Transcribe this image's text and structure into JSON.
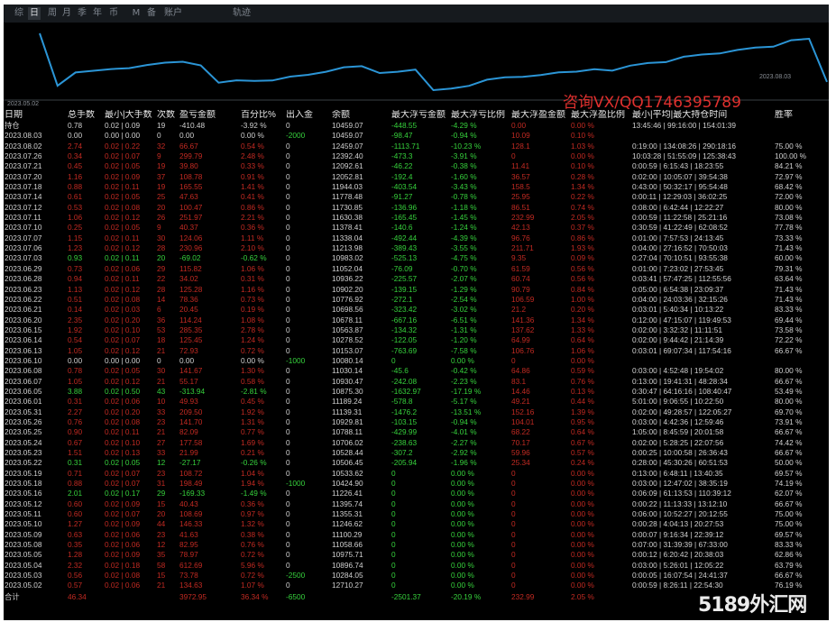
{
  "toolbar": {
    "tabs": [
      {
        "label": "综",
        "active": false
      },
      {
        "label": "日",
        "active": true
      },
      {
        "label": "周",
        "active": false
      },
      {
        "label": "月",
        "active": false
      },
      {
        "label": "季",
        "active": false
      },
      {
        "label": "年",
        "active": false
      },
      {
        "label": "币",
        "active": false
      },
      {
        "label": "M",
        "active": false
      },
      {
        "label": "备",
        "active": false
      },
      {
        "label": "账户",
        "active": false
      }
    ],
    "track_label": "轨迹"
  },
  "chart": {
    "start_label": "2023.05.02",
    "end_label": "2023.08.03",
    "watermark": "咨询VX/QQ1746395789",
    "line_color": "#2b95d6"
  },
  "chart_data": {
    "type": "line",
    "x_range": [
      "2023.05.02",
      "2023.08.03"
    ],
    "series": [
      {
        "values": [
          12710.27,
          10284.05,
          10896.74,
          10975.71,
          11058.66,
          11100.29,
          11246.62,
          11355.31,
          11395.74,
          11226.41,
          10424.9,
          10533.62,
          10506.45,
          10528.44,
          10706.02,
          10788.11,
          10929.81,
          11139.31,
          11189.24,
          10875.3,
          10930.47,
          11030.14,
          10080.14,
          10153.07,
          10278.52,
          10563.87,
          10678.11,
          10698.56,
          10776.92,
          10902.2,
          10936.22,
          11052.04,
          10983.02,
          11213.98,
          11338.04,
          11378.41,
          11630.38,
          11730.85,
          11778.48,
          11944.03,
          12052.81,
          12092.61,
          12392.4,
          12459.07,
          10459.07
        ]
      }
    ]
  },
  "table": {
    "headers": [
      "日期",
      "总手数",
      "最小|大手数",
      "次数",
      "盈亏金额",
      "百分比%",
      "出入金",
      "余额",
      "最大浮亏金额",
      "最大浮亏比例",
      "最大浮盈金额",
      "最大浮盈比例",
      "最小|平均|最大持仓时间",
      "胜率"
    ],
    "holding_row": {
      "cls": "white",
      "cells": [
        "持仓",
        "0.78",
        "0.02 | 0.09",
        "19",
        "-410.48",
        "-3.92 %",
        "0",
        "10459.07",
        "-448.55",
        "-4.29 %",
        "0.00",
        "0.00 %",
        "13:45:46 | 99:16:00 | 154:01:39",
        ""
      ]
    },
    "rows": [
      {
        "cls": "white",
        "cells": [
          "2023.08.03",
          "0.00",
          "0.00 | 0.00",
          "0",
          "0.00",
          "0.00 %",
          "-2000",
          "10459.07",
          "-98.47",
          "-0.94 %",
          "10.09",
          "0.10 %",
          "",
          ""
        ]
      },
      {
        "cls": "red",
        "cells": [
          "2023.08.02",
          "2.74",
          "0.02 | 0.22",
          "32",
          "66.67",
          "0.54 %",
          "0",
          "12459.07",
          "-1113.71",
          "-10.23 %",
          "128.1",
          "1.03 %",
          "0:19:00 | 134:08:26 | 290:18:16",
          "75.00 %"
        ]
      },
      {
        "cls": "red",
        "cells": [
          "2023.07.26",
          "0.34",
          "0.02 | 0.07",
          "9",
          "299.79",
          "2.48 %",
          "0",
          "12392.40",
          "-473.3",
          "-3.91 %",
          "0",
          "0.00 %",
          "10:03:28 | 51:55:09 | 125:38:43",
          "100.00 %"
        ]
      },
      {
        "cls": "red",
        "cells": [
          "2023.07.21",
          "0.45",
          "0.02 | 0.05",
          "19",
          "39.80",
          "0.33 %",
          "0",
          "12092.61",
          "-46.22",
          "-0.38 %",
          "11.41",
          "0.10 %",
          "0:00:59 | 6:15:43 | 18:23:55",
          "84.21 %"
        ]
      },
      {
        "cls": "red",
        "cells": [
          "2023.07.20",
          "1.16",
          "0.02 | 0.09",
          "37",
          "108.78",
          "0.91 %",
          "0",
          "12052.81",
          "-192.4",
          "-1.60 %",
          "36.57",
          "0.28 %",
          "0:02:00 | 10:05:07 | 39:54:38",
          "72.97 %"
        ]
      },
      {
        "cls": "red",
        "cells": [
          "2023.07.18",
          "0.88",
          "0.02 | 0.11",
          "19",
          "165.55",
          "1.41 %",
          "0",
          "11944.03",
          "-403.54",
          "-3.43 %",
          "158.5",
          "1.34 %",
          "0:43:00 | 50:32:17 | 95:54:48",
          "68.42 %"
        ]
      },
      {
        "cls": "red",
        "cells": [
          "2023.07.14",
          "0.61",
          "0.02 | 0.05",
          "25",
          "47.63",
          "0.41 %",
          "0",
          "11778.48",
          "-91.27",
          "-0.78 %",
          "25.95",
          "0.22 %",
          "0:00:11 | 12:29:03 | 36:02:25",
          "72.00 %"
        ]
      },
      {
        "cls": "red",
        "cells": [
          "2023.07.12",
          "0.53",
          "0.02 | 0.08",
          "20",
          "100.47",
          "0.86 %",
          "0",
          "11730.85",
          "-136.96",
          "-1.18 %",
          "86.51",
          "0.74 %",
          "0:08:00 | 6:42:44 | 12:22:27",
          "80.00 %"
        ]
      },
      {
        "cls": "red",
        "cells": [
          "2023.07.11",
          "1.06",
          "0.02 | 0.12",
          "26",
          "251.97",
          "2.21 %",
          "0",
          "11630.38",
          "-165.45",
          "-1.45 %",
          "232.99",
          "2.05 %",
          "0:00:59 | 11:22:58 | 25:21:16",
          "73.08 %"
        ]
      },
      {
        "cls": "red",
        "cells": [
          "2023.07.10",
          "0.25",
          "0.02 | 0.05",
          "9",
          "40.37",
          "0.36 %",
          "0",
          "11378.41",
          "-140.6",
          "-1.24 %",
          "42.13",
          "0.37 %",
          "0:30:59 | 41:22:49 | 62:08:52",
          "77.78 %"
        ]
      },
      {
        "cls": "red",
        "cells": [
          "2023.07.07",
          "1.15",
          "0.02 | 0.11",
          "30",
          "124.06",
          "1.11 %",
          "0",
          "11338.04",
          "-492.44",
          "-4.39 %",
          "96.76",
          "0.86 %",
          "0:01:00 | 7:57:53 | 24:13:45",
          "73.33 %"
        ]
      },
      {
        "cls": "red",
        "cells": [
          "2023.07.06",
          "1.23",
          "0.02 | 0.12",
          "28",
          "230.96",
          "2.10 %",
          "0",
          "11213.98",
          "-389.43",
          "-3.55 %",
          "211.71",
          "1.93 %",
          "0:04:00 | 27:16:52 | 70:50:03",
          "71.43 %"
        ]
      },
      {
        "cls": "green",
        "cells": [
          "2023.07.03",
          "0.93",
          "0.02 | 0.11",
          "20",
          "-69.02",
          "-0.62 %",
          "0",
          "10983.02",
          "-525.13",
          "-4.75 %",
          "9.35",
          "0.09 %",
          "0:27:04 | 70:10:51 | 93:55:38",
          "60.00 %"
        ]
      },
      {
        "cls": "red",
        "cells": [
          "2023.06.29",
          "0.73",
          "0.02 | 0.06",
          "29",
          "115.82",
          "1.06 %",
          "0",
          "11052.04",
          "-76.09",
          "-0.70 %",
          "61.59",
          "0.56 %",
          "0:01:00 | 7:23:02 | 27:53:45",
          "79.31 %"
        ]
      },
      {
        "cls": "red",
        "cells": [
          "2023.06.28",
          "0.94",
          "0.02 | 0.11",
          "22",
          "34.02",
          "0.31 %",
          "0",
          "10936.22",
          "-225.57",
          "-2.07 %",
          "60.74",
          "0.56 %",
          "0:03:41 | 57:47:25 | 112:55:56",
          "63.64 %"
        ]
      },
      {
        "cls": "red",
        "cells": [
          "2023.06.23",
          "1.13",
          "0.02 | 0.12",
          "28",
          "125.28",
          "1.16 %",
          "0",
          "10902.20",
          "-139.15",
          "-1.29 %",
          "90.79",
          "0.84 %",
          "0:05:00 | 6:54:38 | 23:09:37",
          "71.43 %"
        ]
      },
      {
        "cls": "red",
        "cells": [
          "2023.06.22",
          "0.51",
          "0.02 | 0.08",
          "14",
          "78.36",
          "0.73 %",
          "0",
          "10776.92",
          "-272.1",
          "-2.54 %",
          "106.59",
          "1.00 %",
          "0:04:00 | 24:03:36 | 32:15:26",
          "71.43 %"
        ]
      },
      {
        "cls": "red",
        "cells": [
          "2023.06.21",
          "0.14",
          "0.02 | 0.03",
          "6",
          "20.45",
          "0.19 %",
          "0",
          "10698.56",
          "-323.42",
          "-3.02 %",
          "21.2",
          "0.20 %",
          "0:03:01 | 5:40:34 | 10:13:22",
          "83.33 %"
        ]
      },
      {
        "cls": "red",
        "cells": [
          "2023.06.20",
          "2.35",
          "0.02 | 0.20",
          "36",
          "114.24",
          "1.08 %",
          "0",
          "10678.11",
          "-667.16",
          "-6.51 %",
          "141.36",
          "1.34 %",
          "0:12:00 | 47:15:07 | 119:49:53",
          "69.44 %"
        ]
      },
      {
        "cls": "red",
        "cells": [
          "2023.06.15",
          "1.92",
          "0.02 | 0.10",
          "53",
          "285.35",
          "2.78 %",
          "0",
          "10563.87",
          "-134.32",
          "-1.31 %",
          "137.62",
          "1.33 %",
          "0:02:00 | 3:32:32 | 11:11:51",
          "73.58 %"
        ]
      },
      {
        "cls": "red",
        "cells": [
          "2023.06.14",
          "0.54",
          "0.02 | 0.07",
          "18",
          "125.45",
          "1.24 %",
          "0",
          "10278.52",
          "-122.05",
          "-1.20 %",
          "64.99",
          "0.64 %",
          "0:02:00 | 9:44:42 | 21:14:39",
          "72.22 %"
        ]
      },
      {
        "cls": "red",
        "cells": [
          "2023.06.13",
          "1.05",
          "0.02 | 0.12",
          "21",
          "72.93",
          "0.72 %",
          "0",
          "10153.07",
          "-763.69",
          "-7.58 %",
          "106.76",
          "1.06 %",
          "0:03:01 | 69:07:34 | 117:54:16",
          "66.67 %"
        ]
      },
      {
        "cls": "white",
        "cells": [
          "2023.06.10",
          "0.00",
          "0.00 | 0.00",
          "0",
          "0.00",
          "0.00 %",
          "-1000",
          "10080.14",
          "0",
          "0.00 %",
          "0",
          "0.00 %",
          "",
          ""
        ]
      },
      {
        "cls": "red",
        "cells": [
          "2023.06.08",
          "0.78",
          "0.02 | 0.05",
          "30",
          "141.67",
          "1.30 %",
          "0",
          "11030.14",
          "-45.6",
          "-0.42 %",
          "64.86",
          "0.59 %",
          "0:03:00 | 4:52:48 | 19:54:02",
          "80.00 %"
        ]
      },
      {
        "cls": "red",
        "cells": [
          "2023.06.07",
          "1.05",
          "0.02 | 0.12",
          "21",
          "55.17",
          "0.58 %",
          "0",
          "10930.47",
          "-242.08",
          "-2.23 %",
          "83.1",
          "0.76 %",
          "0:13:00 | 19:41:31 | 48:28:34",
          "66.67 %"
        ]
      },
      {
        "cls": "green",
        "cells": [
          "2023.06.05",
          "3.88",
          "0.02 | 0.50",
          "43",
          "-313.94",
          "-2.81 %",
          "0",
          "10875.30",
          "-1632.97",
          "-17.19 %",
          "14.46",
          "0.13 %",
          "0:30:47 | 64:16:16 | 108:40:47",
          "53.49 %"
        ]
      },
      {
        "cls": "red",
        "cells": [
          "2023.06.01",
          "0.31",
          "0.02 | 0.06",
          "10",
          "49.93",
          "0.45 %",
          "0",
          "11189.24",
          "-578.8",
          "-5.17 %",
          "49.21",
          "0.44 %",
          "5:01:00 | 9:06:55 | 10:22:50",
          "80.00 %"
        ]
      },
      {
        "cls": "red",
        "cells": [
          "2023.05.31",
          "2.27",
          "0.02 | 0.20",
          "33",
          "209.50",
          "1.92 %",
          "0",
          "11139.31",
          "-1476.2",
          "-13.51 %",
          "152.16",
          "1.39 %",
          "0:02:00 | 49:28:57 | 122:05:27",
          "69.70 %"
        ]
      },
      {
        "cls": "red",
        "cells": [
          "2023.05.26",
          "0.76",
          "0.02 | 0.08",
          "23",
          "141.70",
          "1.31 %",
          "0",
          "10929.81",
          "-103.15",
          "-0.94 %",
          "104.01",
          "0.95 %",
          "0:03:00 | 4:42:36 | 12:59:46",
          "73.91 %"
        ]
      },
      {
        "cls": "red",
        "cells": [
          "2023.05.25",
          "0.90",
          "0.02 | 0.11",
          "21",
          "82.09",
          "0.77 %",
          "0",
          "10788.11",
          "-429.99",
          "-4.01 %",
          "68.22",
          "0.64 %",
          "1:05:00 | 8:45:59 | 20:01:58",
          "66.67 %"
        ]
      },
      {
        "cls": "red",
        "cells": [
          "2023.05.24",
          "0.67",
          "0.02 | 0.10",
          "27",
          "177.58",
          "1.69 %",
          "0",
          "10706.02",
          "-238.63",
          "-2.27 %",
          "70.17",
          "0.67 %",
          "0:02:00 | 5:28:25 | 22:07:56",
          "74.42 %"
        ]
      },
      {
        "cls": "red",
        "cells": [
          "2023.05.23",
          "1.51",
          "0.02 | 0.13",
          "33",
          "21.99",
          "0.21 %",
          "0",
          "10528.44",
          "-307.2",
          "-2.92 %",
          "59.96",
          "0.57 %",
          "0:00:25 | 10:00:58 | 26:36:43",
          "66.67 %"
        ]
      },
      {
        "cls": "green",
        "cells": [
          "2023.05.22",
          "0.31",
          "0.02 | 0.05",
          "12",
          "-27.17",
          "-0.26 %",
          "0",
          "10506.45",
          "-205.94",
          "-1.96 %",
          "25.34",
          "0.24 %",
          "0:28:00 | 45:30:26 | 60:51:53",
          "50.00 %"
        ]
      },
      {
        "cls": "red",
        "cells": [
          "2023.05.19",
          "0.71",
          "0.02 | 0.07",
          "23",
          "108.72",
          "1.04 %",
          "0",
          "10533.62",
          "0",
          "0.00 %",
          "0",
          "0.00 %",
          "0:13:00 | 6:48:11 | 13:40:35",
          "69.57 %"
        ]
      },
      {
        "cls": "red",
        "cells": [
          "2023.05.18",
          "0.88",
          "0.02 | 0.07",
          "31",
          "198.49",
          "1.94 %",
          "-1000",
          "10424.90",
          "0",
          "0.00 %",
          "0",
          "0.00 %",
          "0:03:00 | 12:47:02 | 38:35:19",
          "74.19 %"
        ]
      },
      {
        "cls": "green",
        "cells": [
          "2023.05.16",
          "2.01",
          "0.02 | 0.17",
          "29",
          "-169.33",
          "-1.49 %",
          "0",
          "11226.41",
          "0",
          "0.00 %",
          "0",
          "0.00 %",
          "0:06:09 | 61:13:53 | 110:39:12",
          "62.07 %"
        ]
      },
      {
        "cls": "red",
        "cells": [
          "2023.05.12",
          "0.60",
          "0.02 | 0.09",
          "15",
          "40.43",
          "0.36 %",
          "0",
          "11395.74",
          "0",
          "0.00 %",
          "0",
          "0.00 %",
          "0:00:22 | 11:13:33 | 13:12:10",
          "66.67 %"
        ]
      },
      {
        "cls": "red",
        "cells": [
          "2023.05.11",
          "0.60",
          "0.02 | 0.07",
          "20",
          "108.69",
          "0.97 %",
          "0",
          "11355.31",
          "0",
          "0.00 %",
          "0",
          "0.00 %",
          "0:06:00 | 10:52:27 | 20:12:55",
          "75.00 %"
        ]
      },
      {
        "cls": "red",
        "cells": [
          "2023.05.10",
          "1.27",
          "0.02 | 0.09",
          "44",
          "146.33",
          "1.32 %",
          "0",
          "11246.62",
          "0",
          "0.00 %",
          "0",
          "0.00 %",
          "0:00:28 | 4:04:13 | 20:27:53",
          "75.00 %"
        ]
      },
      {
        "cls": "red",
        "cells": [
          "2023.05.09",
          "0.63",
          "0.02 | 0.06",
          "23",
          "41.63",
          "0.38 %",
          "0",
          "11100.29",
          "0",
          "0.00 %",
          "0",
          "0.00 %",
          "0:00:07 | 9:16:34 | 22:39:12",
          "69.57 %"
        ]
      },
      {
        "cls": "red",
        "cells": [
          "2023.05.08",
          "0.35",
          "0.02 | 0.06",
          "12",
          "82.95",
          "0.76 %",
          "0",
          "11058.66",
          "0",
          "0.00 %",
          "0",
          "0.00 %",
          "0:07:00 | 31:39:39 | 67:33:00",
          "83.33 %"
        ]
      },
      {
        "cls": "red",
        "cells": [
          "2023.05.05",
          "1.28",
          "0.02 | 0.09",
          "35",
          "78.97",
          "0.72 %",
          "0",
          "10975.71",
          "0",
          "0.00 %",
          "0",
          "0.00 %",
          "0:00:12 | 6:20:42 | 20:38:03",
          "62.86 %"
        ]
      },
      {
        "cls": "red",
        "cells": [
          "2023.05.04",
          "2.32",
          "0.02 | 0.18",
          "58",
          "612.69",
          "5.96 %",
          "0",
          "10896.74",
          "0",
          "0.00 %",
          "0",
          "0.00 %",
          "0:03:00 | 5:26:01 | 12:05:22",
          "63.79 %"
        ]
      },
      {
        "cls": "red",
        "cells": [
          "2023.05.03",
          "0.56",
          "0.02 | 0.08",
          "15",
          "73.78",
          "0.72 %",
          "-2500",
          "10284.05",
          "0",
          "0.00 %",
          "0",
          "0.00 %",
          "0:00:05 | 16:07:54 | 24:41:37",
          "66.67 %"
        ]
      },
      {
        "cls": "red",
        "cells": [
          "2023.05.02",
          "0.57",
          "0.02 | 0.06",
          "21",
          "134.63",
          "1.07 %",
          "0",
          "12710.27",
          "0",
          "0.00 %",
          "0",
          "0.00 %",
          "0:00:59 | 8:26:11 | 22:54:30",
          "76.19 %"
        ]
      }
    ],
    "total_row": {
      "cls": "red",
      "cells": [
        "合计",
        "46.34",
        "",
        "",
        "3972.95",
        "36.34 %",
        "-6500",
        "",
        "-2501.37",
        "-20.19 %",
        "232.99",
        "2.05 %",
        "",
        ""
      ]
    }
  },
  "corner_watermark": "5189外汇网"
}
